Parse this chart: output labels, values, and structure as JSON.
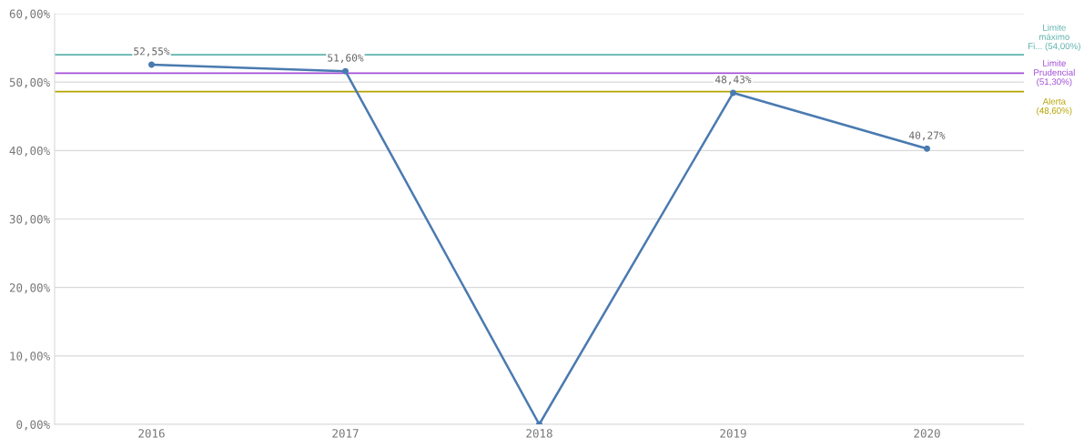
{
  "chart_data": {
    "type": "line",
    "categories": [
      "2016",
      "2017",
      "2018",
      "2019",
      "2020"
    ],
    "series": [
      {
        "color": "#4a7ab0",
        "values": [
          52.55,
          51.6,
          0,
          48.43,
          40.27
        ],
        "value_labels": [
          "52,55%",
          "51,60%",
          null,
          "48,43%",
          "40,27%"
        ]
      }
    ],
    "ylim": [
      0,
      60
    ],
    "yticks": [
      {
        "value": 0,
        "label": "0,00%"
      },
      {
        "value": 10,
        "label": "10,00%"
      },
      {
        "value": 20,
        "label": "20,00%"
      },
      {
        "value": 30,
        "label": "30,00%"
      },
      {
        "value": 40,
        "label": "40,00%"
      },
      {
        "value": 50,
        "label": "50,00%"
      },
      {
        "value": 60,
        "label": "60,00%"
      }
    ],
    "ref_lines": [
      {
        "axis": "y",
        "value": 54,
        "label": "Limite\nmáximo\nFi... (54,00%)",
        "color": "#5fb3ad"
      },
      {
        "axis": "y",
        "value": 51.3,
        "label": "Limite\nPrudencial\n(51,30%)",
        "color": "#a24fd6"
      },
      {
        "axis": "y",
        "value": 48.6,
        "label": "Alerta\n(48,60%)",
        "color": "#b5a300"
      }
    ],
    "grid": "y",
    "marker": "circle",
    "line_style": "solid",
    "legend": false
  }
}
